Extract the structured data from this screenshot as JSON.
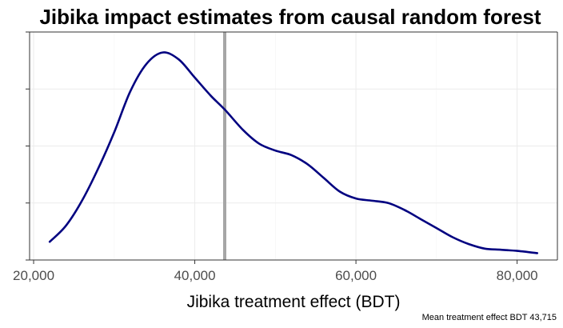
{
  "chart_data": {
    "type": "line",
    "title": "Jibika impact estimates from causal random forest",
    "xlabel": "Jibika treatment effect (BDT)",
    "ylabel": "",
    "caption": "Mean treatment effect BDT 43,715",
    "xlim": [
      19500,
      85000
    ],
    "ylim": [
      0,
      1
    ],
    "x_ticks": [
      20000,
      40000,
      60000,
      80000
    ],
    "x_tick_labels": [
      "20,000",
      "40,000",
      "60,000",
      "80,000"
    ],
    "y_ticks": [
      0.0,
      0.25,
      0.5,
      0.75,
      1.0
    ],
    "y_tick_labels": [
      "",
      "",
      "",
      "",
      ""
    ],
    "grid": true,
    "mean_line": {
      "x": 43715,
      "color": "#a6a6a6"
    },
    "series": [
      {
        "color": "#000080",
        "x": [
          22000,
          24000,
          26000,
          28000,
          30000,
          32000,
          34000,
          36000,
          38000,
          40000,
          42000,
          43715,
          46000,
          48000,
          50000,
          52000,
          54000,
          56000,
          58000,
          60000,
          62000,
          64000,
          66000,
          68000,
          70000,
          72000,
          74000,
          76000,
          78000,
          80000,
          82500
        ],
        "y": [
          0.08,
          0.15,
          0.26,
          0.4,
          0.56,
          0.74,
          0.86,
          0.91,
          0.88,
          0.8,
          0.72,
          0.66,
          0.57,
          0.51,
          0.48,
          0.46,
          0.42,
          0.36,
          0.3,
          0.27,
          0.26,
          0.25,
          0.22,
          0.18,
          0.14,
          0.1,
          0.07,
          0.05,
          0.045,
          0.04,
          0.03
        ]
      }
    ]
  }
}
